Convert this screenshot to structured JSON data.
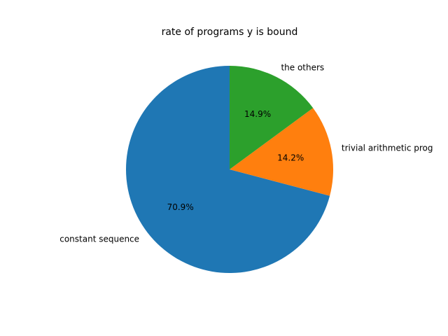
{
  "chart_data": {
    "type": "pie",
    "title": "rate of programs y is bound",
    "slices": [
      {
        "label": "constant sequence",
        "value": 70.9,
        "pct_label": "70.9%",
        "color": "#1f77b4"
      },
      {
        "label": "trivial arithmetic prog",
        "value": 14.2,
        "pct_label": "14.2%",
        "color": "#ff7f0e"
      },
      {
        "label": "the others",
        "value": 14.9,
        "pct_label": "14.9%",
        "color": "#2ca02c"
      }
    ],
    "start_angle_deg": 90,
    "direction": "counterclockwise"
  }
}
